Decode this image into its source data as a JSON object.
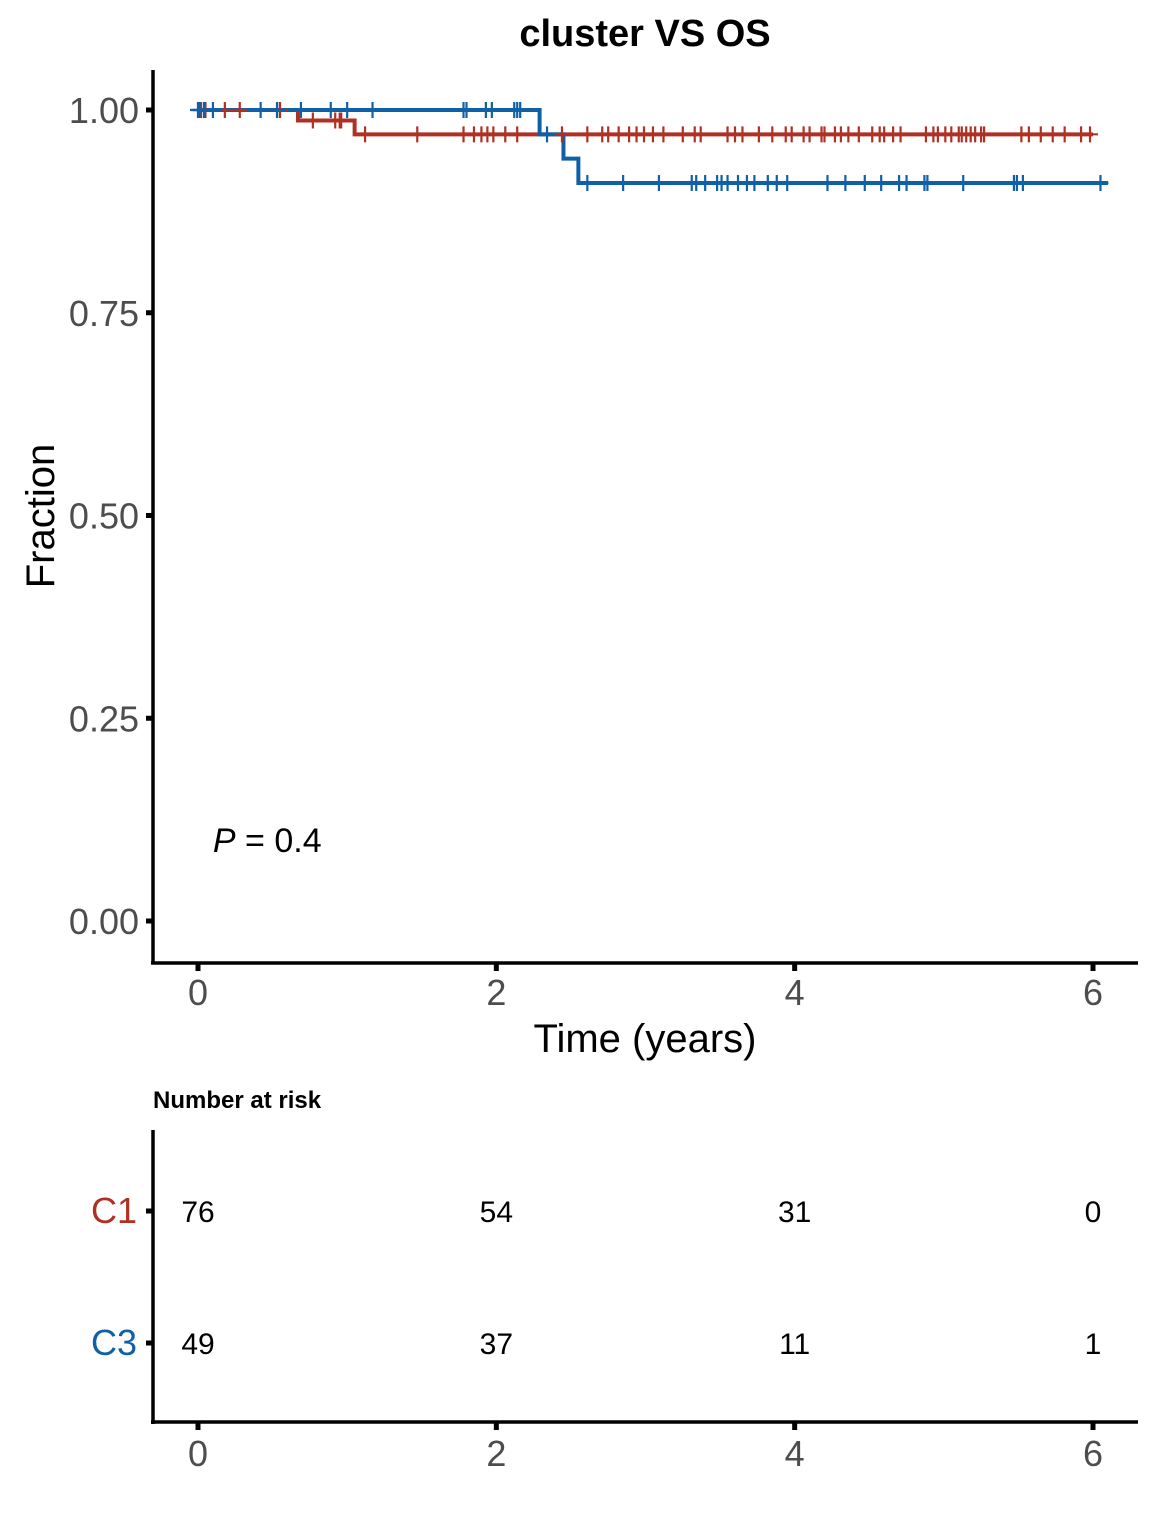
{
  "chart_data": [
    {
      "type": "line",
      "subtype": "kaplan-meier",
      "title": "cluster VS OS",
      "xlabel": "Time (years)",
      "ylabel": "Fraction",
      "xlim": [
        -0.3,
        6.3
      ],
      "ylim": [
        -0.045,
        1.045
      ],
      "x_ticks": [
        "0",
        "2",
        "4",
        "6"
      ],
      "y_ticks": [
        "0.00",
        "0.25",
        "0.50",
        "0.75",
        "1.00"
      ],
      "x_tick_values": [
        0,
        2,
        4,
        6
      ],
      "y_tick_values": [
        0,
        0.25,
        0.5,
        0.75,
        1.0
      ],
      "grid": false,
      "annotation": {
        "label_italic": "P",
        "label_rest": " = 0.4",
        "x": 0.1,
        "y": 0.1
      },
      "series": [
        {
          "name": "C1",
          "color": "#b03024",
          "steps": [
            [
              0,
              1.0
            ],
            [
              0.67,
              0.987
            ],
            [
              1.05,
              0.97
            ],
            [
              6.0,
              0.97
            ]
          ],
          "censors": [
            0.02,
            0.05,
            0.18,
            0.28,
            0.53,
            0.55,
            0.77,
            0.92,
            0.95,
            0.96,
            1.12,
            1.47,
            1.78,
            1.85,
            1.9,
            1.94,
            1.98,
            2.06,
            2.14,
            2.44,
            2.61,
            2.71,
            2.75,
            2.82,
            2.89,
            2.94,
            2.99,
            3.05,
            3.12,
            3.25,
            3.33,
            3.37,
            3.55,
            3.6,
            3.65,
            3.76,
            3.85,
            3.94,
            3.98,
            4.06,
            4.1,
            4.18,
            4.2,
            4.27,
            4.31,
            4.36,
            4.43,
            4.52,
            4.57,
            4.6,
            4.66,
            4.71,
            4.88,
            4.93,
            4.96,
            5.01,
            5.05,
            5.1,
            5.12,
            5.15,
            5.18,
            5.21,
            5.25,
            5.27,
            5.52,
            5.57,
            5.65,
            5.73,
            5.81,
            5.92,
            5.98
          ]
        },
        {
          "name": "C3",
          "color": "#1060a8",
          "steps": [
            [
              0,
              1.0
            ],
            [
              2.29,
              0.97
            ],
            [
              2.45,
              0.94
            ],
            [
              2.55,
              0.91
            ],
            [
              6.1,
              0.91
            ]
          ],
          "censors": [
            0.0,
            0.01,
            0.04,
            0.1,
            0.42,
            0.53,
            0.69,
            0.89,
            1.0,
            1.17,
            1.78,
            1.8,
            1.93,
            1.97,
            2.12,
            2.14,
            2.16,
            2.34,
            2.61,
            2.85,
            3.09,
            3.31,
            3.34,
            3.4,
            3.48,
            3.51,
            3.55,
            3.62,
            3.68,
            3.73,
            3.82,
            3.88,
            3.95,
            4.22,
            4.34,
            4.47,
            4.58,
            4.7,
            4.75,
            4.87,
            4.89,
            5.13,
            5.47,
            5.49,
            5.53,
            6.05
          ]
        }
      ]
    },
    {
      "type": "table",
      "title": "Number at risk",
      "x_ticks": [
        "0",
        "2",
        "4",
        "6"
      ],
      "x_tick_values": [
        0,
        2,
        4,
        6
      ],
      "xlim": [
        -0.3,
        6.3
      ],
      "strata": [
        {
          "name": "C1",
          "color": "#b03024",
          "values": [
            "76",
            "54",
            "31",
            "0"
          ]
        },
        {
          "name": "C3",
          "color": "#1060a8",
          "values": [
            "49",
            "37",
            "11",
            "1"
          ]
        }
      ]
    }
  ]
}
